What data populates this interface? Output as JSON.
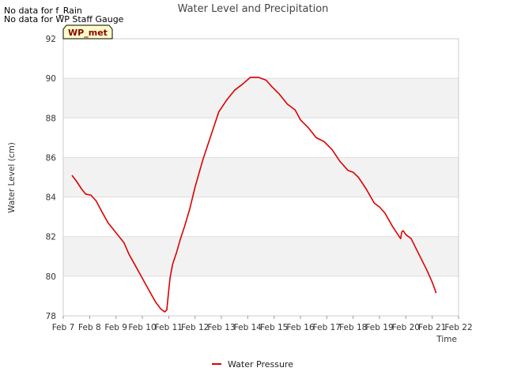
{
  "notes": [
    "No data for f_Rain",
    "No data for WP Staff Gauge"
  ],
  "badge": "WP_met",
  "colors": {
    "series": "#dd0000",
    "band": "#f2f2f2",
    "grid": "#dddddd",
    "badge_fill": "#ffffcc"
  },
  "chart_data": {
    "type": "line",
    "title": "Water Level and Precipitation",
    "xlabel": "Time",
    "ylabel": "Water Level (cm)",
    "xlim": [
      7,
      22
    ],
    "ylim": [
      78,
      92
    ],
    "x_ticks": [
      {
        "v": 7,
        "label": "Feb 7"
      },
      {
        "v": 8,
        "label": "Feb 8"
      },
      {
        "v": 9,
        "label": "Feb 9"
      },
      {
        "v": 10,
        "label": "Feb 10"
      },
      {
        "v": 11,
        "label": "Feb 11"
      },
      {
        "v": 12,
        "label": "Feb 12"
      },
      {
        "v": 13,
        "label": "Feb 13"
      },
      {
        "v": 14,
        "label": "Feb 14"
      },
      {
        "v": 15,
        "label": "Feb 15"
      },
      {
        "v": 16,
        "label": "Feb 16"
      },
      {
        "v": 17,
        "label": "Feb 17"
      },
      {
        "v": 18,
        "label": "Feb 18"
      },
      {
        "v": 19,
        "label": "Feb 19"
      },
      {
        "v": 20,
        "label": "Feb 20"
      },
      {
        "v": 21,
        "label": "Feb 21"
      },
      {
        "v": 22,
        "label": "Feb 22"
      }
    ],
    "y_ticks": [
      78,
      80,
      82,
      84,
      86,
      88,
      90,
      92
    ],
    "grid": true,
    "legend_position": "bottom-center",
    "series": [
      {
        "name": "Water Pressure",
        "x": [
          7.33,
          7.5,
          7.7,
          7.85,
          8.05,
          8.25,
          8.45,
          8.7,
          9.0,
          9.3,
          9.5,
          9.75,
          10.0,
          10.25,
          10.5,
          10.7,
          10.85,
          10.93,
          10.98,
          11.05,
          11.15,
          11.3,
          11.45,
          11.6,
          11.8,
          12.0,
          12.3,
          12.6,
          12.9,
          13.0,
          13.2,
          13.5,
          13.8,
          14.1,
          14.4,
          14.7,
          14.9,
          15.2,
          15.5,
          15.8,
          16.0,
          16.3,
          16.6,
          16.9,
          17.2,
          17.5,
          17.8,
          18.0,
          18.2,
          18.5,
          18.8,
          19.0,
          19.2,
          19.5,
          19.75,
          19.8,
          19.85,
          19.9,
          20.0,
          20.2,
          20.5,
          20.8,
          21.0,
          21.15
        ],
        "y": [
          85.1,
          84.8,
          84.4,
          84.15,
          84.1,
          83.8,
          83.3,
          82.7,
          82.2,
          81.7,
          81.1,
          80.5,
          79.9,
          79.3,
          78.7,
          78.35,
          78.2,
          78.3,
          79.0,
          79.9,
          80.6,
          81.2,
          81.9,
          82.5,
          83.4,
          84.5,
          85.9,
          87.1,
          88.3,
          88.5,
          88.9,
          89.4,
          89.7,
          90.05,
          90.05,
          89.9,
          89.6,
          89.2,
          88.7,
          88.4,
          87.9,
          87.5,
          87.0,
          86.8,
          86.4,
          85.8,
          85.35,
          85.25,
          85.0,
          84.4,
          83.7,
          83.5,
          83.2,
          82.5,
          82.0,
          81.9,
          82.25,
          82.3,
          82.1,
          81.9,
          81.1,
          80.3,
          79.7,
          79.15
        ]
      }
    ]
  }
}
